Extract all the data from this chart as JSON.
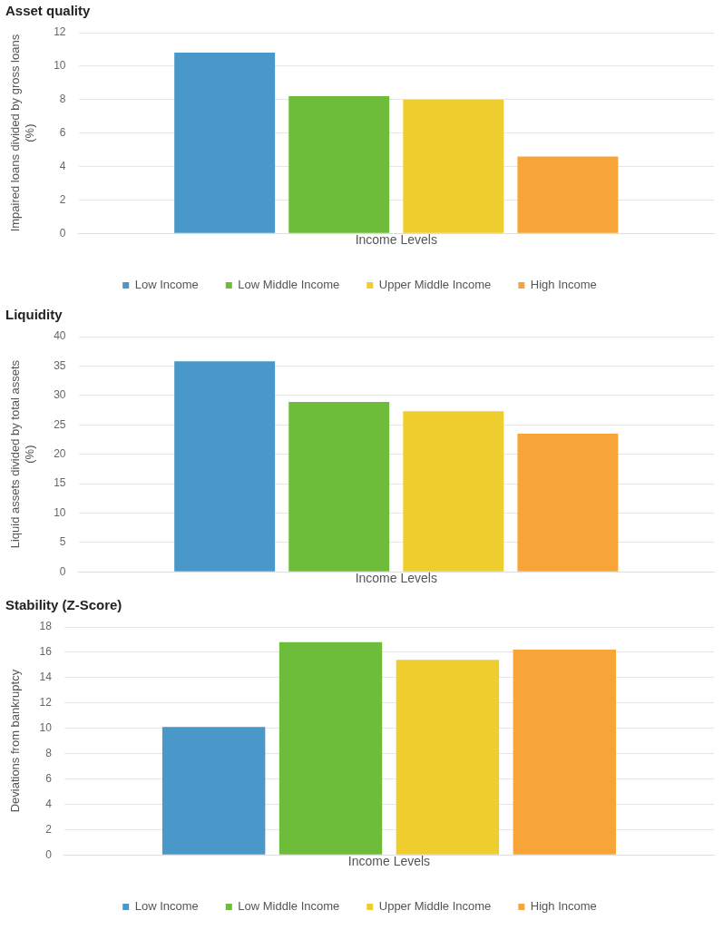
{
  "chart_data": [
    {
      "type": "bar",
      "title": "Asset quality",
      "xlabel": "Income Levels",
      "ylabel": "Impaired loans divided by gross loans (%)",
      "categories": [
        null
      ],
      "series": [
        {
          "name": "Low Income",
          "color": "#4a98c9",
          "values": [
            10.8
          ]
        },
        {
          "name": "Low Middle Income",
          "color": "#6dbd3a",
          "values": [
            8.2
          ]
        },
        {
          "name": "Upper Middle Income",
          "color": "#efcd2e",
          "values": [
            8.0
          ]
        },
        {
          "name": "High Income",
          "color": "#f7a438",
          "values": [
            4.6
          ]
        }
      ],
      "ylim": [
        0,
        12
      ],
      "yticks": [
        0,
        2,
        4,
        6,
        8,
        10,
        12
      ],
      "grid": "y",
      "legend": "bottom"
    },
    {
      "type": "bar",
      "title": "Liquidity",
      "xlabel": "Income Levels",
      "ylabel": "Liquid assets divided by total assets (%)",
      "categories": [
        null
      ],
      "series": [
        {
          "color": "#4a98c9",
          "values": [
            35.8
          ]
        },
        {
          "color": "#6dbd3a",
          "values": [
            28.9
          ]
        },
        {
          "color": "#efcd2e",
          "values": [
            27.3
          ]
        },
        {
          "color": "#f7a438",
          "values": [
            23.5
          ]
        }
      ],
      "ylim": [
        0,
        40
      ],
      "yticks": [
        0,
        5,
        10,
        15,
        20,
        25,
        30,
        35,
        40
      ],
      "grid": "y",
      "legend": false
    },
    {
      "type": "bar",
      "title": "Stability (Z-Score)",
      "xlabel": "Income Levels",
      "ylabel": "Deviations from bankruptcy",
      "categories": [
        null
      ],
      "series": [
        {
          "name": "Low Income",
          "color": "#4a98c9",
          "values": [
            10.1
          ]
        },
        {
          "name": "Low Middle Income",
          "color": "#6dbd3a",
          "values": [
            16.8
          ]
        },
        {
          "name": "Upper Middle Income",
          "color": "#efcd2e",
          "values": [
            15.4
          ]
        },
        {
          "name": "High Income",
          "color": "#f7a438",
          "values": [
            16.2
          ]
        }
      ],
      "ylim": [
        0,
        18
      ],
      "yticks": [
        0,
        2,
        4,
        6,
        8,
        10,
        12,
        14,
        16,
        18
      ],
      "grid": "y",
      "legend": "bottom"
    }
  ]
}
